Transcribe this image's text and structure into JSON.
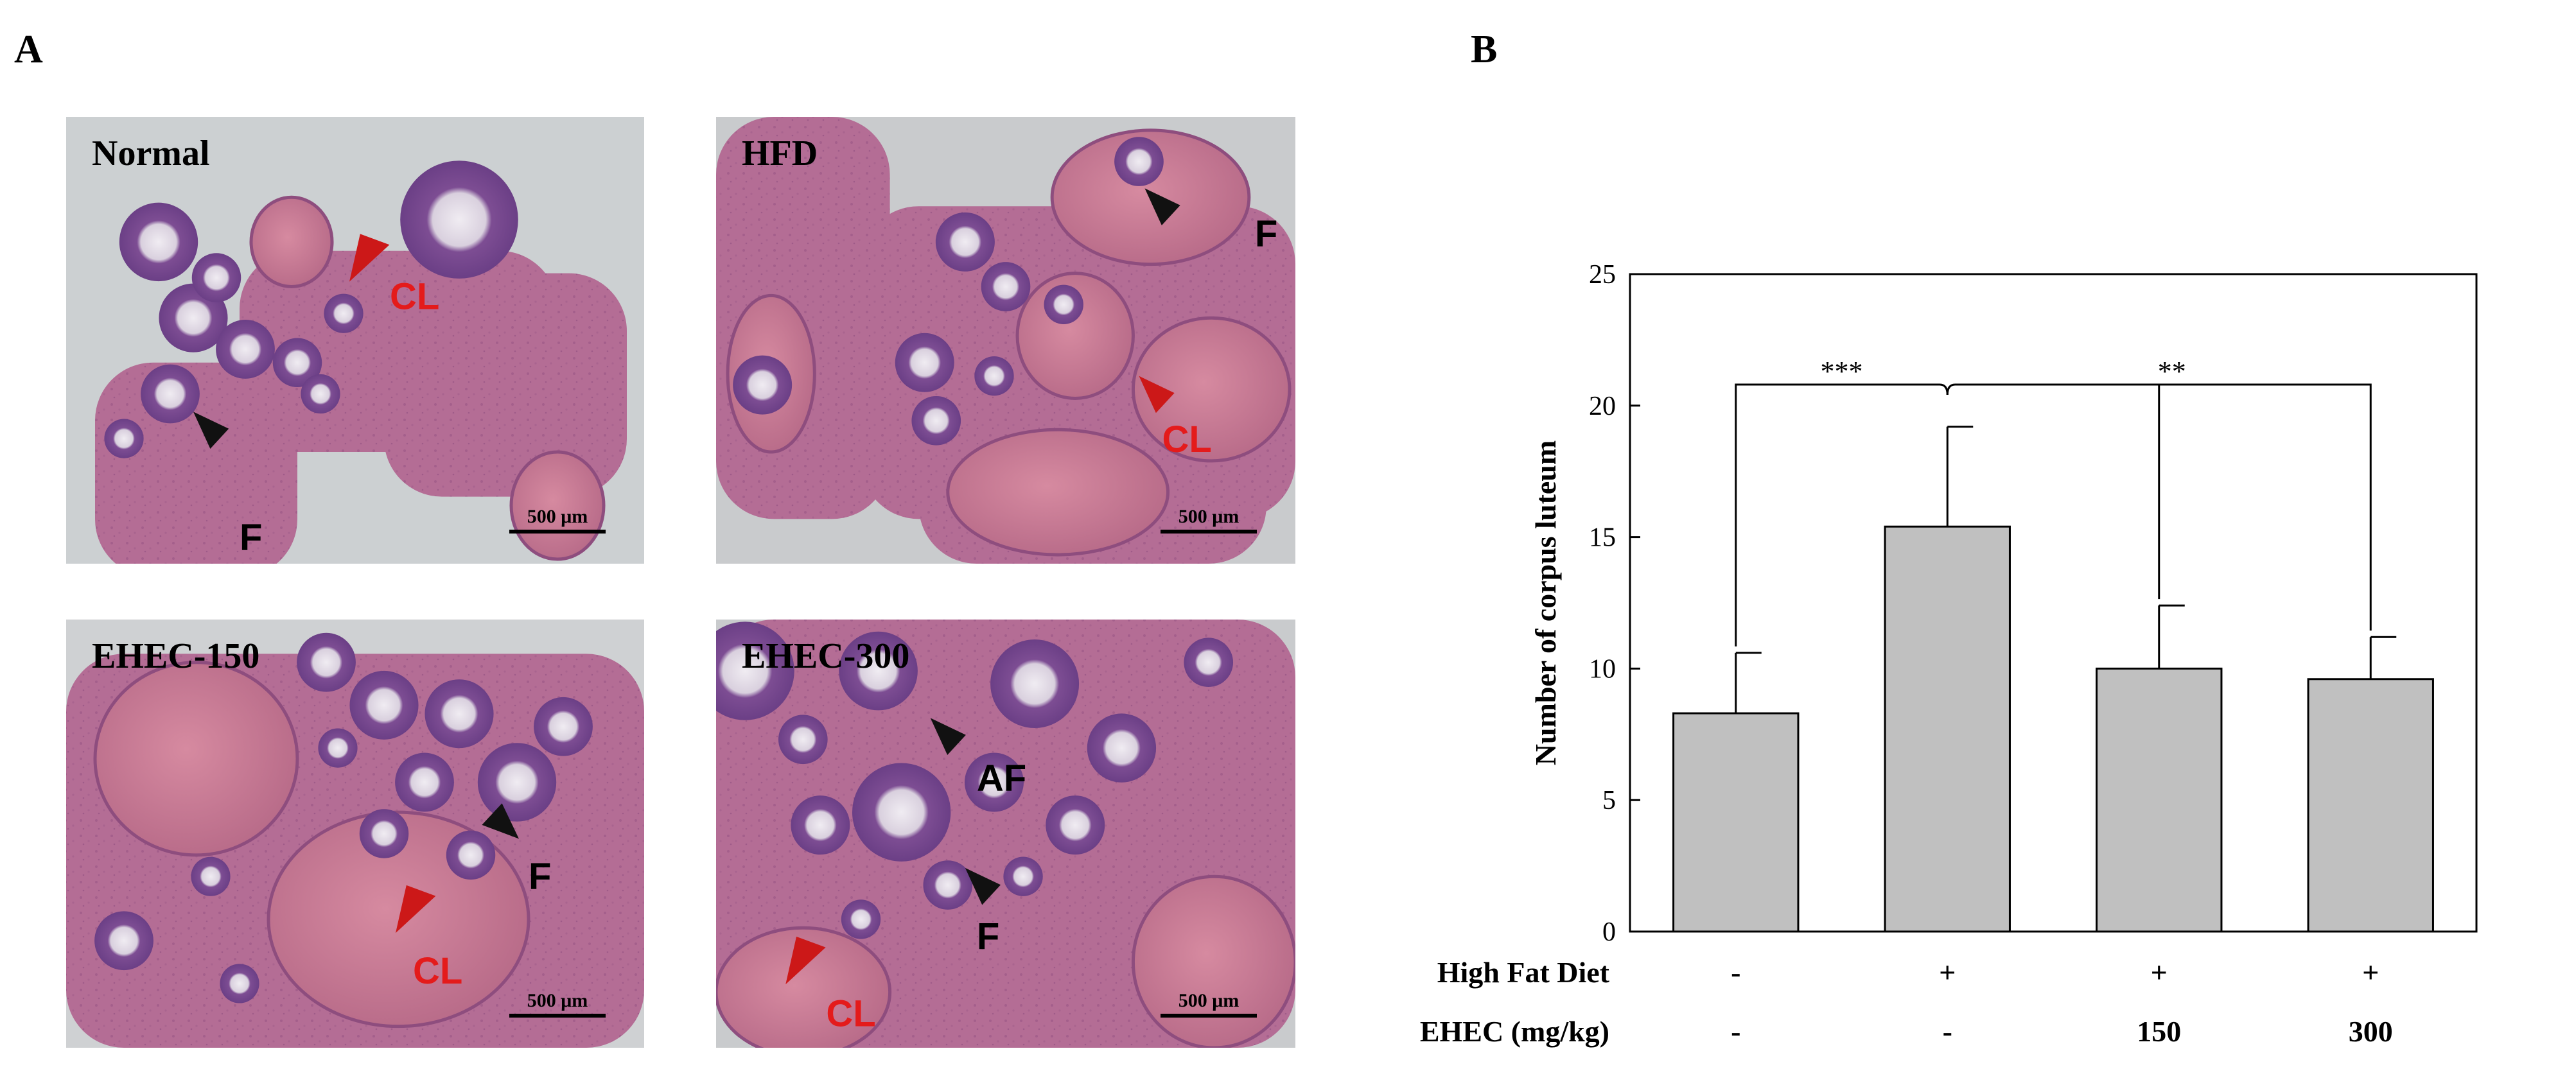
{
  "panel_a": {
    "letter": "A",
    "images": [
      {
        "name": "Normal",
        "title": "Normal",
        "scale_label": "500 μm",
        "markers": [
          {
            "label": "CL",
            "color": "#e41b1b"
          },
          {
            "label": "F",
            "color": "#000000"
          }
        ]
      },
      {
        "name": "HFD",
        "title": "HFD",
        "scale_label": "500 μm",
        "markers": [
          {
            "label": "F",
            "color": "#000000"
          },
          {
            "label": "CL",
            "color": "#e41b1b"
          }
        ]
      },
      {
        "name": "EHEC-150",
        "title": "EHEC-150",
        "scale_label": "500 μm",
        "markers": [
          {
            "label": "F",
            "color": "#000000"
          },
          {
            "label": "CL",
            "color": "#e41b1b"
          }
        ]
      },
      {
        "name": "EHEC-300",
        "title": "EHEC-300",
        "scale_label": "500 μm",
        "markers": [
          {
            "label": "AF",
            "color": "#000000"
          },
          {
            "label": "F",
            "color": "#000000"
          },
          {
            "label": "CL",
            "color": "#e41b1b"
          }
        ]
      }
    ]
  },
  "panel_b": {
    "letter": "B",
    "condition_rows": [
      {
        "label": "High Fat Diet",
        "values": [
          "-",
          "+",
          "+",
          "+"
        ]
      },
      {
        "label": "EHEC (mg/kg)",
        "values": [
          "-",
          "-",
          "150",
          "300"
        ]
      }
    ],
    "significance": [
      {
        "from": 0,
        "to": 1,
        "label": "***"
      },
      {
        "from": 1,
        "to": 3,
        "label": "**",
        "also_to": 2
      }
    ]
  },
  "chart_data": {
    "type": "bar",
    "categories": [
      "-/-",
      "+/-",
      "+/150",
      "+/300"
    ],
    "values": [
      8.3,
      15.4,
      10.0,
      9.6
    ],
    "errors": [
      2.3,
      3.8,
      2.4,
      1.6
    ],
    "xlabel": "",
    "ylabel": "Number of corpus luteum",
    "ylim": [
      0,
      25
    ],
    "yticks": [
      0,
      5,
      10,
      15,
      20,
      25
    ],
    "bar_color": "#c0c0c0",
    "grid": false
  }
}
